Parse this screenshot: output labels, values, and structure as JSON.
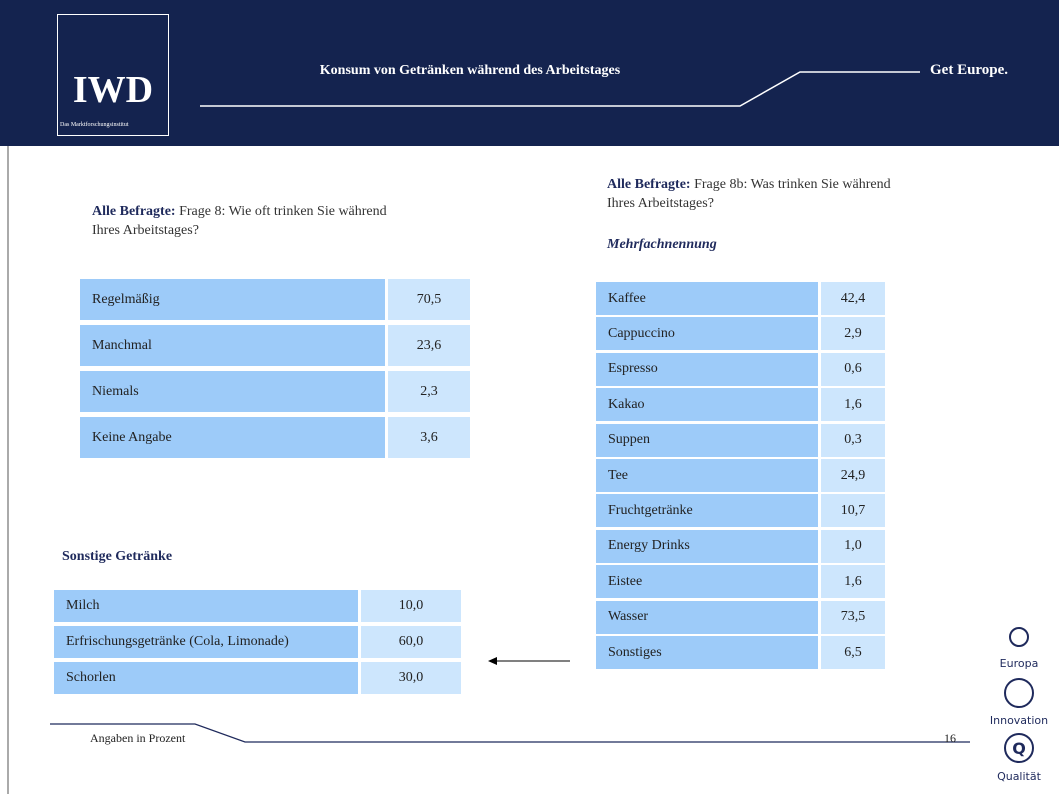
{
  "header": {
    "logo": "IWD",
    "logo_subtitle": "Das Marktforschungsinstitut",
    "title": "Konsum von Getränken während des Arbeitstages",
    "tagline": "Get Europe."
  },
  "left_question": {
    "label": "Alle Befragte:",
    "text": "Frage 8: Wie oft trinken Sie während Ihres Arbeitstages?"
  },
  "left_table": {
    "rows": [
      [
        "Regelmäßig",
        "70,5"
      ],
      [
        "Manchmal",
        "23,6"
      ],
      [
        "Niemals",
        "2,3"
      ],
      [
        "Keine Angabe",
        "3,6"
      ]
    ]
  },
  "right_question": {
    "label": "Alle Befragte:",
    "text": "Frage 8b: Was trinken Sie während Ihres Arbeitstages?"
  },
  "right_note": "Mehrfachnennung",
  "right_table": {
    "rows": [
      [
        "Kaffee",
        "42,4"
      ],
      [
        "Cappuccino",
        "2,9"
      ],
      [
        "Espresso",
        "0,6"
      ],
      [
        "Kakao",
        "1,6"
      ],
      [
        "Suppen",
        "0,3"
      ],
      [
        "Tee",
        "24,9"
      ],
      [
        "Fruchtgetränke",
        "10,7"
      ],
      [
        "Energy Drinks",
        "1,0"
      ],
      [
        "Eistee",
        "1,6"
      ],
      [
        "Wasser",
        "73,5"
      ],
      [
        "Sonstiges",
        "6,5"
      ]
    ]
  },
  "other_title": "Sonstige Getränke",
  "other_table": {
    "rows": [
      [
        "Milch",
        "10,0"
      ],
      [
        "Erfrischungsgetränke (Cola, Limonade)",
        "60,0"
      ],
      [
        "Schorlen",
        "30,0"
      ]
    ]
  },
  "footer": {
    "note": "Angaben in Prozent",
    "page": "16"
  },
  "icons": [
    "Europa",
    "Innovation",
    "Qualität"
  ]
}
